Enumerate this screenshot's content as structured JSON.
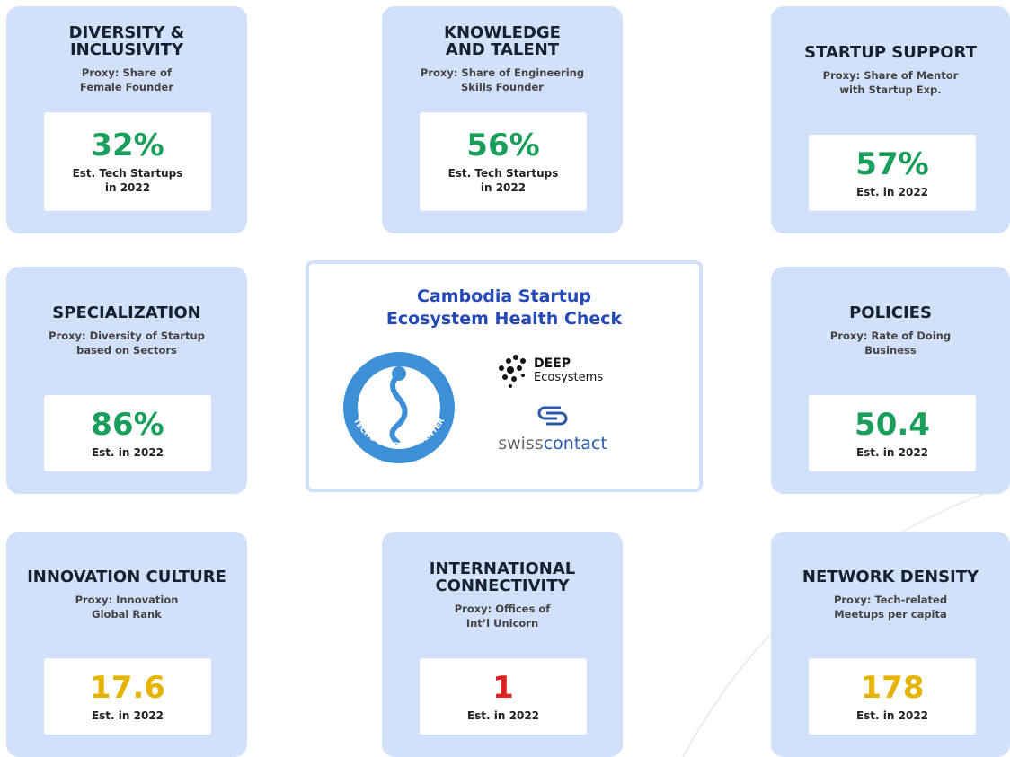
{
  "cards": [
    {
      "title": [
        "DIVERSITY &",
        "INCLUSIVITY"
      ],
      "proxy": [
        "Proxy: Share of",
        "Female Founder"
      ],
      "value": "32%",
      "note": [
        "Est. Tech Startups",
        "in 2022"
      ],
      "color": "#1a9e5b"
    },
    {
      "title": [
        "KNOWLEDGE",
        "AND TALENT"
      ],
      "proxy": [
        "Proxy: Share of Engineering",
        "Skills Founder"
      ],
      "value": "56%",
      "note": [
        "Est. Tech Startups",
        "in 2022"
      ],
      "color": "#1a9e5b"
    },
    {
      "title": [
        "STARTUP SUPPORT"
      ],
      "proxy": [
        "Proxy: Share of Mentor",
        "with Startup Exp."
      ],
      "value": "57%",
      "note": [
        "Est. in 2022"
      ],
      "color": "#1a9e5b"
    },
    {
      "title": [
        "SPECIALIZATION"
      ],
      "proxy": [
        "Proxy: Diversity of Startup",
        "based on Sectors"
      ],
      "value": "86%",
      "note": [
        "Est. in 2022"
      ],
      "color": "#1a9e5b"
    },
    {
      "title": [
        "POLICIES"
      ],
      "proxy": [
        "Proxy: Rate of Doing",
        "Business"
      ],
      "value": "50.4",
      "note": [
        "Est. in 2022"
      ],
      "color": "#1a9e5b"
    },
    {
      "title": [
        "INNOVATION CULTURE"
      ],
      "proxy": [
        "Proxy: Innovation",
        "Global Rank"
      ],
      "value": "17.6",
      "note": [
        "Est. in 2022"
      ],
      "color": "#e6b400"
    },
    {
      "title": [
        "INTERNATIONAL",
        "CONNECTIVITY"
      ],
      "proxy": [
        "Proxy: Offices of",
        "Int’l Unicorn"
      ],
      "value": "1",
      "note": [
        "Est. in 2022"
      ],
      "color": "#e02020"
    },
    {
      "title": [
        "NETWORK DENSITY"
      ],
      "proxy": [
        "Proxy: Tech-related",
        "Meetups per capita"
      ],
      "value": "178",
      "note": [
        "Est. in 2022"
      ],
      "color": "#e6b400"
    }
  ],
  "center": {
    "title": [
      "Cambodia Startup",
      "Ecosystem Health Check"
    ],
    "logos": {
      "techo": "TECHO STARTUP CENTER",
      "deep": [
        "DEEP",
        "Ecosystems"
      ],
      "swiss": [
        "swiss",
        "contact"
      ]
    }
  }
}
